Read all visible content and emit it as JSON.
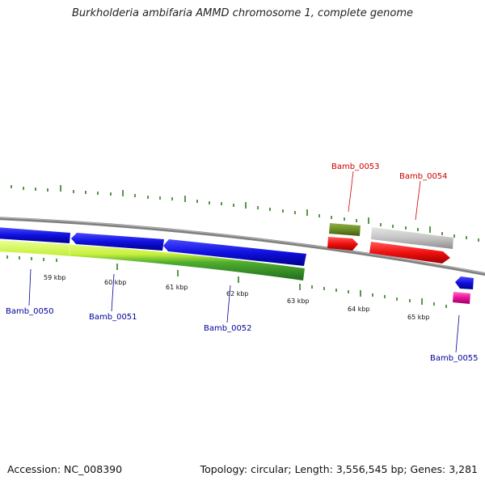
{
  "title": "Burkholderia ambifaria AMMD chromosome 1, complete genome",
  "footer": {
    "accession": "Accession: NC_008390",
    "summary": "Topology: circular; Length: 3,556,545 bp; Genes: 3,281"
  },
  "colors": {
    "backbone": "#8a8a8a",
    "tick": "#2e7d1e",
    "forward_label": "#cc0000",
    "reverse_label": "#00009c",
    "blue_gene": "#1010e0",
    "red_gene": "#f01010",
    "olive_gene": "#6b8e23",
    "gray_gene": "#c4c4c4",
    "magenta_gene": "#e8109a",
    "lime_track": "#c8f03c",
    "green_track": "#2e8b2e"
  },
  "kbp_labels": [
    "59 kbp",
    "60 kbp",
    "61 kbp",
    "62 kbp",
    "63 kbp",
    "64 kbp",
    "65 kbp"
  ],
  "genes": [
    {
      "id": "Bamb_0050",
      "strand": "reverse"
    },
    {
      "id": "Bamb_0051",
      "strand": "reverse"
    },
    {
      "id": "Bamb_0052",
      "strand": "reverse"
    },
    {
      "id": "Bamb_0053",
      "strand": "forward"
    },
    {
      "id": "Bamb_0054",
      "strand": "forward"
    },
    {
      "id": "Bamb_0055",
      "strand": "reverse"
    }
  ]
}
